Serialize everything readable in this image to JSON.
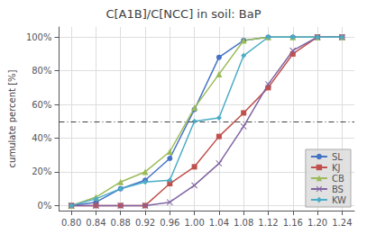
{
  "chart_data": {
    "type": "line",
    "title": "C[A1B]/C[NCC] in soil: BaP",
    "ylabel": "cumulate percent [%]",
    "x": [
      0.8,
      0.84,
      0.88,
      0.92,
      0.96,
      1.0,
      1.04,
      1.08,
      1.12,
      1.16,
      1.2,
      1.24
    ],
    "xlim": [
      0.78,
      1.26
    ],
    "xticks": [
      {
        "value": 0.8,
        "label": "0.80"
      },
      {
        "value": 0.84,
        "label": "0.84"
      },
      {
        "value": 0.88,
        "label": "0.88"
      },
      {
        "value": 0.92,
        "label": "0.92"
      },
      {
        "value": 0.96,
        "label": "0.96"
      },
      {
        "value": 1.0,
        "label": "1.00"
      },
      {
        "value": 1.04,
        "label": "1.04"
      },
      {
        "value": 1.08,
        "label": "1.08"
      },
      {
        "value": 1.12,
        "label": "1.12"
      },
      {
        "value": 1.16,
        "label": "1.16"
      },
      {
        "value": 1.2,
        "label": "1.20"
      },
      {
        "value": 1.24,
        "label": "1.24"
      }
    ],
    "ylim": [
      -0.03,
      1.06
    ],
    "yticks": [
      {
        "value": 0.0,
        "label": "0%"
      },
      {
        "value": 0.2,
        "label": "20%"
      },
      {
        "value": 0.4,
        "label": "40%"
      },
      {
        "value": 0.6,
        "label": "60%"
      },
      {
        "value": 0.8,
        "label": "80%"
      },
      {
        "value": 1.0,
        "label": "100%"
      }
    ],
    "hline": 0.5,
    "series": [
      {
        "name": "SL",
        "color": "#4472C4",
        "marker": "circle",
        "values": [
          0.0,
          0.02,
          0.1,
          0.15,
          0.28,
          0.57,
          0.88,
          0.98,
          1.0,
          1.0,
          1.0,
          1.0
        ]
      },
      {
        "name": "KJ",
        "color": "#C0504D",
        "marker": "square",
        "values": [
          0.0,
          0.0,
          0.0,
          0.0,
          0.13,
          0.23,
          0.41,
          0.55,
          0.7,
          0.9,
          1.0,
          1.0
        ]
      },
      {
        "name": "CB",
        "color": "#9BBB59",
        "marker": "triangle",
        "values": [
          0.0,
          0.05,
          0.14,
          0.2,
          0.32,
          0.58,
          0.78,
          0.98,
          1.0,
          1.0,
          1.0,
          1.0
        ]
      },
      {
        "name": "BS",
        "color": "#8064A2",
        "marker": "x",
        "values": [
          0.0,
          0.0,
          0.0,
          0.0,
          0.02,
          0.12,
          0.25,
          0.47,
          0.72,
          0.92,
          1.0,
          1.0
        ]
      },
      {
        "name": "KW",
        "color": "#4BACC6",
        "marker": "diamond",
        "values": [
          0.0,
          0.04,
          0.1,
          0.14,
          0.15,
          0.5,
          0.52,
          0.89,
          1.0,
          1.0,
          1.0,
          1.0
        ]
      }
    ],
    "grid": true,
    "legend": "lower right"
  }
}
